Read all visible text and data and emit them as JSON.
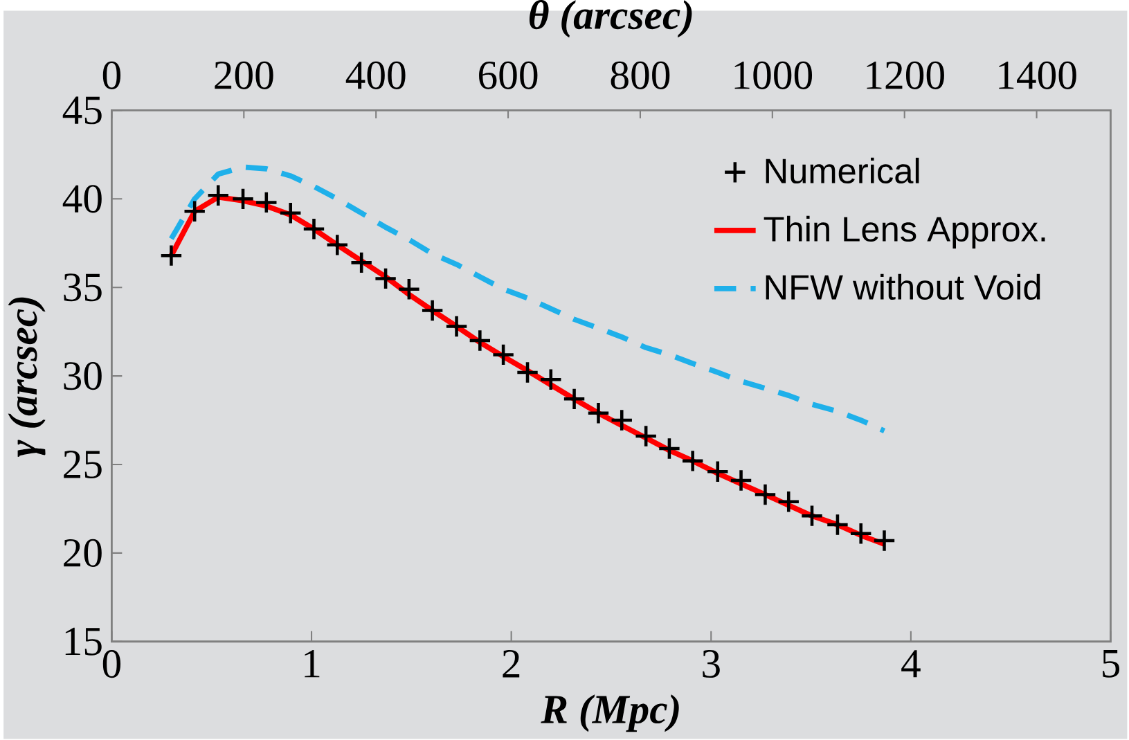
{
  "chart_data": {
    "type": "line",
    "xlabel": "R (Mpc)",
    "ylabel": "γ (arcsec)",
    "x2label": "θ (arcsec)",
    "xlim": [
      0,
      5
    ],
    "xticks": [
      0,
      1,
      2,
      3,
      4,
      5
    ],
    "x2lim": [
      0,
      1512
    ],
    "x2ticks": [
      0,
      200,
      400,
      600,
      800,
      1000,
      1200,
      1400
    ],
    "ylim": [
      15,
      45
    ],
    "yticks": [
      15,
      20,
      25,
      30,
      35,
      40,
      45
    ],
    "legend": "top right",
    "grid": false,
    "x": [
      0.298,
      0.415,
      0.533,
      0.657,
      0.774,
      0.895,
      1.012,
      1.129,
      1.25,
      1.371,
      1.488,
      1.605,
      1.726,
      1.843,
      1.96,
      2.081,
      2.198,
      2.315,
      2.436,
      2.553,
      2.674,
      2.791,
      2.908,
      3.033,
      3.15,
      3.271,
      3.388,
      3.505,
      3.633,
      3.75,
      3.867
    ],
    "series": [
      {
        "name": "Numerical",
        "type": "scatter",
        "marker": "cross",
        "color": "#000000",
        "values": [
          36.8,
          39.3,
          40.2,
          40.0,
          39.8,
          39.2,
          38.3,
          37.4,
          36.4,
          35.5,
          34.9,
          33.7,
          32.8,
          32.0,
          31.2,
          30.2,
          29.8,
          28.7,
          27.9,
          27.5,
          26.6,
          25.9,
          25.2,
          24.6,
          24.1,
          23.3,
          22.9,
          22.1,
          21.6,
          21.1,
          20.7
        ]
      },
      {
        "name": "Thin Lens Approx.",
        "type": "line",
        "line_style": "solid",
        "color": "#ff0000",
        "values": [
          36.8,
          39.3,
          40.1,
          39.9,
          39.6,
          39.1,
          38.3,
          37.4,
          36.5,
          35.6,
          34.6,
          33.7,
          32.8,
          31.9,
          31.1,
          30.3,
          29.5,
          28.7,
          27.9,
          27.2,
          26.5,
          25.8,
          25.2,
          24.5,
          23.9,
          23.3,
          22.7,
          22.1,
          21.6,
          21.0,
          20.5
        ]
      },
      {
        "name": "NFW without Void",
        "type": "line",
        "line_style": "dashed",
        "color": "#1fb0ea",
        "values": [
          37.75,
          40.0,
          41.4,
          41.8,
          41.7,
          41.3,
          40.7,
          40.0,
          39.2,
          38.4,
          37.7,
          36.9,
          36.3,
          35.6,
          34.9,
          34.4,
          33.8,
          33.2,
          32.7,
          32.2,
          31.6,
          31.2,
          30.7,
          30.2,
          29.7,
          29.3,
          28.9,
          28.4,
          28.0,
          27.5,
          26.9
        ]
      }
    ]
  }
}
